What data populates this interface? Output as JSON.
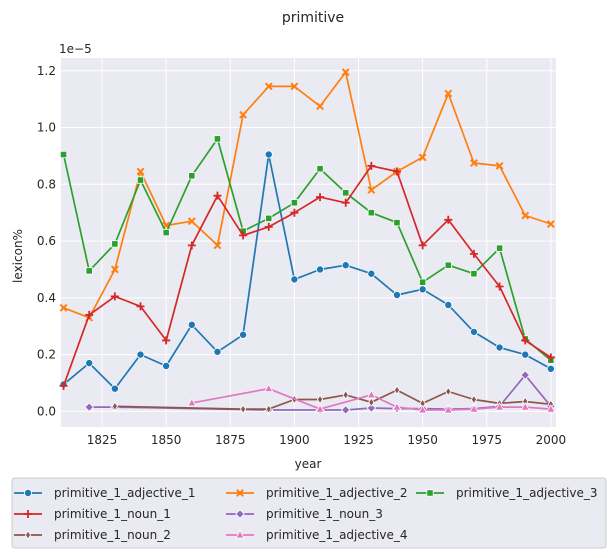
{
  "chart_data": {
    "type": "line",
    "title": "primitive",
    "xlabel": "year",
    "ylabel": "lexicon%",
    "y_offset_label": "1e−5",
    "xlim": [
      1809,
      2002
    ],
    "ylim": [
      -0.055,
      1.245
    ],
    "x_ticks": [
      1825,
      1850,
      1875,
      1900,
      1925,
      1950,
      1975,
      2000
    ],
    "y_ticks": [
      0.0,
      0.2,
      0.4,
      0.6,
      0.8,
      1.0,
      1.2
    ],
    "y_tick_labels": [
      "0.0",
      "0.2",
      "0.4",
      "0.6",
      "0.8",
      "1.0",
      "1.2"
    ],
    "grid": true,
    "background": "#eaeaf2",
    "legend_position": "bottom",
    "series": [
      {
        "name": "primitive_1_adjective_1",
        "color": "#1f77b4",
        "marker": "circle",
        "x": [
          1810,
          1820,
          1830,
          1840,
          1850,
          1860,
          1870,
          1880,
          1890,
          1900,
          1910,
          1920,
          1930,
          1940,
          1950,
          1960,
          1970,
          1980,
          1990,
          2000
        ],
        "y": [
          0.095,
          0.17,
          0.08,
          0.2,
          0.16,
          0.305,
          0.21,
          0.27,
          0.905,
          0.465,
          0.5,
          0.515,
          0.485,
          0.41,
          0.43,
          0.375,
          0.28,
          0.225,
          0.2,
          0.15
        ]
      },
      {
        "name": "primitive_1_adjective_2",
        "color": "#ff7f0e",
        "marker": "x",
        "x": [
          1810,
          1820,
          1830,
          1840,
          1850,
          1860,
          1870,
          1880,
          1890,
          1900,
          1910,
          1920,
          1930,
          1940,
          1950,
          1960,
          1970,
          1980,
          1990,
          2000
        ],
        "y": [
          0.365,
          0.33,
          0.5,
          0.845,
          0.655,
          0.67,
          0.585,
          1.045,
          1.145,
          1.145,
          1.075,
          1.195,
          0.78,
          0.845,
          0.895,
          1.12,
          0.875,
          0.865,
          0.69,
          0.66
        ]
      },
      {
        "name": "primitive_1_adjective_3",
        "color": "#2ca02c",
        "marker": "square",
        "x": [
          1810,
          1820,
          1830,
          1840,
          1850,
          1860,
          1870,
          1880,
          1890,
          1900,
          1910,
          1920,
          1930,
          1940,
          1950,
          1960,
          1970,
          1980,
          1990,
          2000
        ],
        "y": [
          0.905,
          0.495,
          0.59,
          0.815,
          0.63,
          0.83,
          0.96,
          0.635,
          0.68,
          0.735,
          0.855,
          0.77,
          0.7,
          0.665,
          0.455,
          0.515,
          0.485,
          0.575,
          0.255,
          0.18
        ]
      },
      {
        "name": "primitive_1_noun_1",
        "color": "#d62728",
        "marker": "plus",
        "x": [
          1810,
          1820,
          1830,
          1840,
          1850,
          1860,
          1870,
          1880,
          1890,
          1900,
          1910,
          1920,
          1930,
          1940,
          1950,
          1960,
          1970,
          1980,
          1990,
          2000
        ],
        "y": [
          0.09,
          0.34,
          0.405,
          0.37,
          0.25,
          0.585,
          0.76,
          0.62,
          0.65,
          0.7,
          0.755,
          0.735,
          0.865,
          0.845,
          0.585,
          0.675,
          0.555,
          0.44,
          0.25,
          0.19
        ]
      },
      {
        "name": "primitive_1_noun_3",
        "color": "#9467bd",
        "marker": "diamond",
        "x": [
          1820,
          1830,
          1890,
          1910,
          1920,
          1930,
          1940,
          1950,
          1960,
          1970,
          1980,
          1990,
          2000
        ],
        "y": [
          0.015,
          0.015,
          0.005,
          0.005,
          0.005,
          0.012,
          0.01,
          0.01,
          0.008,
          0.01,
          0.018,
          0.128,
          0.018
        ]
      },
      {
        "name": "primitive_1_noun_2",
        "color": "#8c564b",
        "marker": "thin_diamond",
        "x": [
          1830,
          1880,
          1890,
          1900,
          1910,
          1920,
          1930,
          1940,
          1950,
          1960,
          1970,
          1980,
          1990,
          2000
        ],
        "y": [
          0.018,
          0.008,
          0.008,
          0.042,
          0.042,
          0.058,
          0.032,
          0.075,
          0.028,
          0.07,
          0.042,
          0.028,
          0.035,
          0.025
        ]
      },
      {
        "name": "primitive_1_adjective_4",
        "color": "#e377c2",
        "marker": "triangle",
        "x": [
          1860,
          1890,
          1910,
          1930,
          1940,
          1950,
          1960,
          1970,
          1980,
          1990,
          2000
        ],
        "y": [
          0.03,
          0.08,
          0.008,
          0.058,
          0.015,
          0.005,
          0.005,
          0.008,
          0.015,
          0.015,
          0.008
        ]
      }
    ],
    "legend_order": [
      0,
      3,
      5,
      1,
      4,
      6,
      2
    ]
  }
}
